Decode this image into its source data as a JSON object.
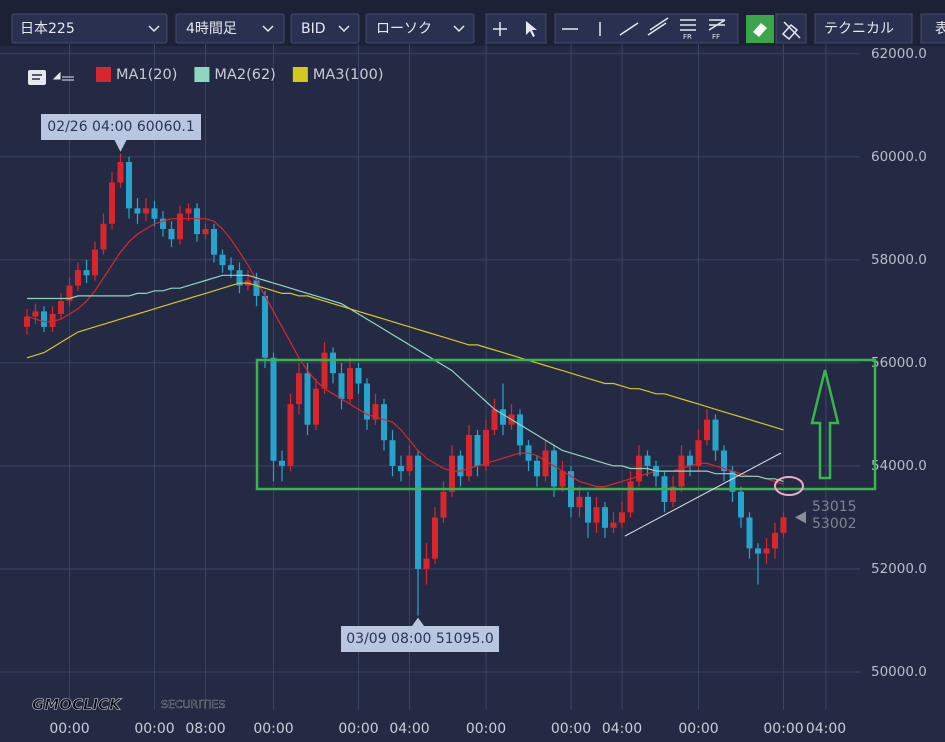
{
  "toolbar": {
    "symbol": "日本225",
    "interval": "4時間足",
    "price_type": "BID",
    "chart_style": "ローソク",
    "technical": "テクニカル",
    "table": "表"
  },
  "logo": {
    "brand": "GMOCLICK",
    "sub": "SECURITIES"
  },
  "chart_data": {
    "type": "candlestick",
    "categories": [
      null,
      null,
      null,
      null,
      null,
      "00:00",
      null,
      null,
      null,
      null,
      null,
      null,
      null,
      null,
      null,
      "00:00",
      null,
      null,
      null,
      null,
      null,
      "08:00",
      null,
      null,
      null,
      null,
      null,
      null,
      null,
      "00:00",
      null,
      null,
      null,
      null,
      null,
      null,
      null,
      null,
      null,
      "00:00",
      null,
      null,
      null,
      null,
      null,
      "04:00",
      null,
      null,
      null,
      null,
      null,
      null,
      null,
      null,
      "00:00",
      null,
      null,
      null,
      null,
      null,
      null,
      null,
      null,
      null,
      "00:00",
      null,
      null,
      null,
      null,
      null,
      "04:00",
      null,
      null,
      null,
      null,
      null,
      null,
      null,
      null,
      "00:00",
      null,
      null,
      null,
      null,
      null,
      null,
      null,
      null,
      null,
      "00:00",
      null,
      null,
      null,
      null,
      "04:00",
      null
    ],
    "open": [
      56700,
      56900,
      57000,
      56700,
      56950,
      57200,
      57500,
      57800,
      57700,
      58200,
      58700,
      59500,
      59900,
      59000,
      58900,
      59000,
      58800,
      58600,
      58400,
      58900,
      59000,
      58500,
      58600,
      58100,
      57900,
      57800,
      57500,
      57600,
      57300,
      56100,
      54100,
      54000,
      55200,
      55800,
      54800,
      55500,
      56200,
      55800,
      55300,
      55900,
      55600,
      54900,
      55200,
      54500,
      54000,
      53900,
      54200,
      52000,
      52200,
      53000,
      53500,
      54200,
      53800,
      54600,
      54000,
      54700,
      55100,
      54800,
      55000,
      54400,
      54100,
      53800,
      54300,
      53600,
      53900,
      53200,
      53400,
      52900,
      53200,
      52800,
      52900,
      53100,
      53700,
      54200,
      54000,
      53800,
      53300,
      53600,
      54200,
      54000,
      54500,
      54900,
      54300,
      53900,
      53500,
      53000,
      52400,
      52300,
      52400,
      52700,
      null,
      null,
      null,
      null,
      null,
      null
    ],
    "high": [
      57050,
      57150,
      57100,
      57100,
      57350,
      57650,
      57950,
      58000,
      58350,
      58900,
      59700,
      60060,
      60000,
      59200,
      59200,
      59150,
      58950,
      58750,
      59050,
      59100,
      59100,
      58700,
      58700,
      58200,
      58050,
      57950,
      57800,
      57750,
      57400,
      56200,
      54300,
      55400,
      56000,
      56000,
      55700,
      56400,
      56300,
      56000,
      56100,
      56000,
      55700,
      55400,
      55300,
      54700,
      54200,
      54400,
      54300,
      52500,
      53200,
      53700,
      54400,
      54300,
      54800,
      54700,
      54900,
      55300,
      55600,
      55200,
      55100,
      54500,
      54200,
      54500,
      54400,
      54100,
      54000,
      53600,
      53500,
      53400,
      53300,
      53100,
      53300,
      53900,
      54400,
      54300,
      54100,
      53900,
      53800,
      54400,
      54300,
      54700,
      55100,
      55000,
      54400,
      54000,
      53600,
      53100,
      52500,
      52600,
      52900,
      53100,
      null,
      null,
      null,
      null,
      null,
      null
    ],
    "low": [
      56550,
      56750,
      56600,
      56600,
      56850,
      57100,
      57400,
      57550,
      57600,
      58100,
      58600,
      59400,
      58800,
      58700,
      58750,
      58650,
      58450,
      58250,
      58300,
      58750,
      58350,
      58400,
      57950,
      57750,
      57650,
      57350,
      57400,
      57100,
      55900,
      53700,
      53700,
      53900,
      55000,
      54600,
      54700,
      55400,
      55600,
      55100,
      55200,
      55400,
      54700,
      54800,
      54300,
      53800,
      53700,
      53800,
      51095,
      51700,
      52100,
      52900,
      53400,
      53600,
      53700,
      53800,
      53900,
      54600,
      54600,
      54700,
      54200,
      53900,
      53600,
      53700,
      53400,
      53500,
      53000,
      53000,
      52600,
      52700,
      52600,
      52700,
      52800,
      53000,
      53600,
      53800,
      53600,
      53100,
      53200,
      53500,
      53800,
      53900,
      54400,
      54100,
      53700,
      53300,
      52800,
      52200,
      51700,
      52100,
      52200,
      52600,
      null,
      null,
      null,
      null,
      null,
      null
    ],
    "close": [
      56900,
      57000,
      56700,
      56950,
      57200,
      57500,
      57800,
      57700,
      58200,
      58700,
      59500,
      59900,
      59000,
      58900,
      59000,
      58800,
      58600,
      58400,
      58900,
      59000,
      58500,
      58600,
      58100,
      57900,
      57800,
      57500,
      57600,
      57300,
      56100,
      54100,
      54000,
      55200,
      55800,
      54800,
      55500,
      56200,
      55800,
      55300,
      55900,
      55600,
      54900,
      55200,
      54500,
      54000,
      53900,
      54200,
      52000,
      52200,
      53000,
      53500,
      54200,
      53800,
      54600,
      54000,
      54700,
      55100,
      54800,
      55000,
      54400,
      54100,
      53800,
      54300,
      53600,
      53900,
      53200,
      53400,
      52900,
      53200,
      52800,
      52900,
      53100,
      53700,
      54200,
      54000,
      53800,
      53300,
      53600,
      54200,
      54000,
      54500,
      54900,
      54300,
      53900,
      53500,
      53000,
      52400,
      52300,
      52400,
      52700,
      53002,
      null,
      null,
      null,
      null,
      null,
      null
    ],
    "up_color": "#d8262c",
    "down_color": "#27a4cc",
    "series": [
      {
        "name": "MA1(20)",
        "color": "#d8262c",
        "values": [
          56900,
          56850,
          56800,
          56800,
          56850,
          56950,
          57050,
          57200,
          57400,
          57650,
          57900,
          58150,
          58350,
          58500,
          58600,
          58700,
          58750,
          58800,
          58800,
          58800,
          58800,
          58800,
          58750,
          58600,
          58400,
          58150,
          57900,
          57600,
          57300,
          57000,
          56700,
          56400,
          56100,
          55850,
          55650,
          55500,
          55400,
          55300,
          55200,
          55100,
          55000,
          54950,
          54900,
          54850,
          54700,
          54500,
          54300,
          54150,
          54050,
          53950,
          53900,
          53900,
          53950,
          54000,
          54050,
          54100,
          54150,
          54200,
          54250,
          54250,
          54200,
          54100,
          54000,
          53900,
          53800,
          53700,
          53650,
          53600,
          53600,
          53650,
          53700,
          53750,
          53800,
          53850,
          53900,
          53900,
          53900,
          53950,
          54000,
          54050,
          54050,
          54000,
          53950,
          53900,
          53850,
          53800,
          53800,
          53750,
          53700,
          53650,
          null,
          null,
          null,
          null,
          null,
          null
        ]
      },
      {
        "name": "MA2(62)",
        "color": "#8fd6bf",
        "values": [
          57250,
          57250,
          57250,
          57250,
          57250,
          57250,
          57300,
          57300,
          57300,
          57300,
          57300,
          57300,
          57300,
          57350,
          57350,
          57400,
          57400,
          57450,
          57450,
          57500,
          57550,
          57600,
          57650,
          57700,
          57700,
          57700,
          57700,
          57650,
          57600,
          57550,
          57500,
          57450,
          57400,
          57350,
          57300,
          57250,
          57200,
          57150,
          57050,
          56950,
          56850,
          56750,
          56650,
          56550,
          56450,
          56350,
          56250,
          56150,
          56050,
          55950,
          55850,
          55700,
          55550,
          55400,
          55250,
          55100,
          55000,
          54900,
          54800,
          54700,
          54600,
          54500,
          54400,
          54300,
          54250,
          54200,
          54150,
          54100,
          54050,
          54000,
          54000,
          53950,
          53950,
          53950,
          53900,
          53900,
          53900,
          53900,
          53900,
          53900,
          53900,
          53850,
          53850,
          53850,
          53800,
          53800,
          53800,
          53750,
          53750,
          53700,
          null,
          null,
          null,
          null,
          null,
          null
        ]
      },
      {
        "name": "MA3(100)",
        "color": "#d4c81e",
        "values": [
          56100,
          56150,
          56200,
          56300,
          56400,
          56500,
          56600,
          56650,
          56700,
          56750,
          56800,
          56850,
          56900,
          56950,
          57000,
          57050,
          57100,
          57150,
          57200,
          57250,
          57300,
          57350,
          57400,
          57450,
          57500,
          57550,
          57550,
          57500,
          57450,
          57400,
          57350,
          57350,
          57300,
          57300,
          57250,
          57200,
          57150,
          57100,
          57050,
          57000,
          56950,
          56900,
          56850,
          56800,
          56750,
          56700,
          56650,
          56600,
          56550,
          56500,
          56450,
          56400,
          56350,
          56350,
          56300,
          56250,
          56200,
          56150,
          56100,
          56050,
          56000,
          55950,
          55900,
          55850,
          55800,
          55750,
          55700,
          55650,
          55600,
          55600,
          55550,
          55500,
          55500,
          55450,
          55400,
          55400,
          55350,
          55300,
          55250,
          55200,
          55150,
          55100,
          55050,
          55000,
          54950,
          54900,
          54850,
          54800,
          54750,
          54700,
          null,
          null,
          null,
          null,
          null,
          null
        ]
      }
    ],
    "ylim": [
      49360,
      62190
    ],
    "yticks": [
      {
        "value": 50000,
        "label": "50000.0"
      },
      {
        "value": 52000,
        "label": "52000.0"
      },
      {
        "value": 54000,
        "label": "54000.0"
      },
      {
        "value": 56000,
        "label": "56000.0"
      },
      {
        "value": 58000,
        "label": "58000.0"
      },
      {
        "value": 60000,
        "label": "60000.0"
      },
      {
        "value": 62000,
        "label": "62000.0"
      }
    ],
    "grid": true,
    "annotations": [
      "02/26 04:00 60060.1",
      "03/09 08:00 51095.0"
    ],
    "price_labels": [
      53015,
      53002
    ]
  }
}
